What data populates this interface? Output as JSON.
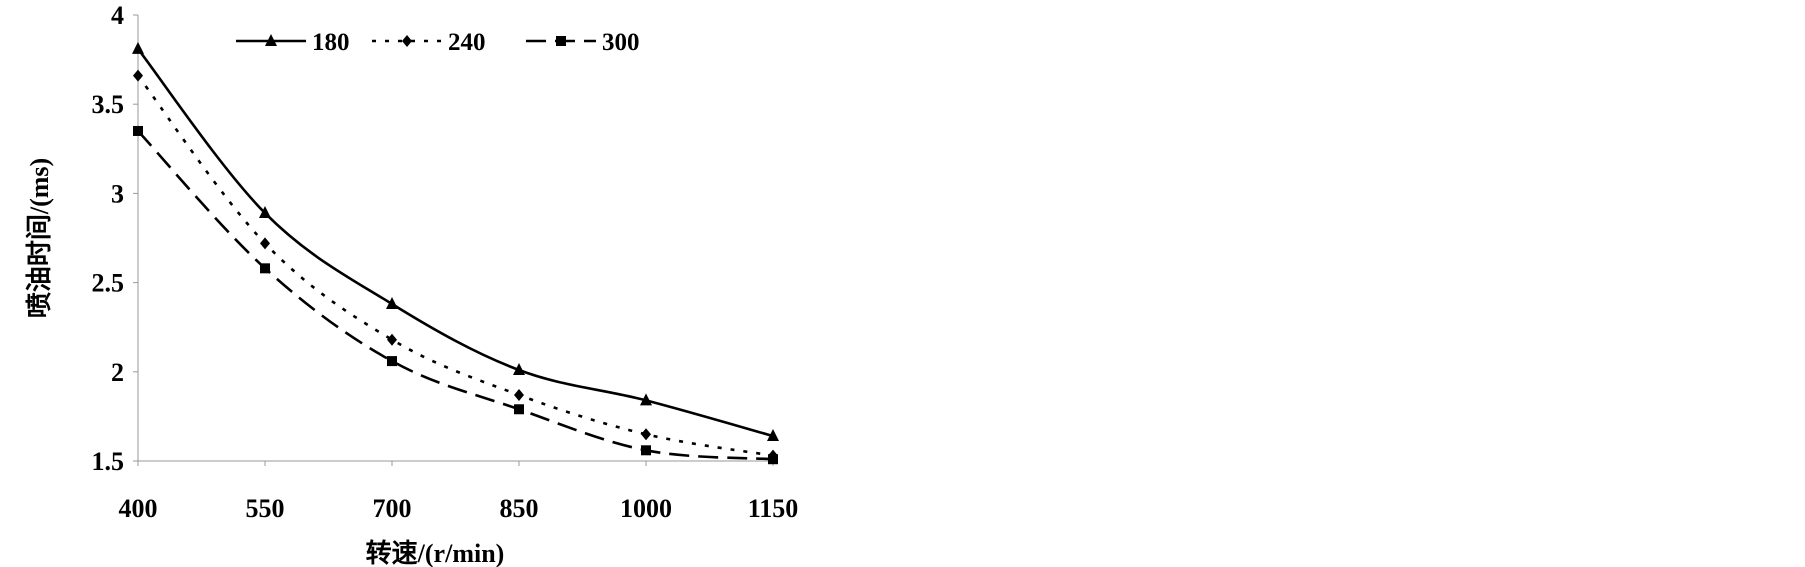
{
  "chart_data": {
    "type": "line",
    "title": "",
    "xlabel": "转速/(r/min)",
    "ylabel": "喷油时间/(ms)",
    "categories": [
      400,
      550,
      700,
      850,
      1000,
      1150
    ],
    "x_tick_labels": [
      "400",
      "550",
      "700",
      "850",
      "1000",
      "1150"
    ],
    "y_tick_labels": [
      "1.5",
      "2",
      "2.5",
      "3",
      "3.5",
      "4"
    ],
    "ylim": [
      1.5,
      4
    ],
    "grid": false,
    "smoothed": true,
    "legend_position": "top",
    "series": [
      {
        "name": "180",
        "values": [
          3.81,
          2.89,
          2.38,
          2.01,
          1.84,
          1.64
        ],
        "line_style": "solid",
        "marker": "triangle"
      },
      {
        "name": "240",
        "values": [
          3.66,
          2.72,
          2.18,
          1.87,
          1.65,
          1.53
        ],
        "line_style": "dotted",
        "marker": "diamond"
      },
      {
        "name": "300",
        "values": [
          3.35,
          2.58,
          2.06,
          1.79,
          1.56,
          1.51
        ],
        "line_style": "dashed",
        "marker": "square"
      }
    ],
    "colors": {
      "lines": "#000000"
    }
  }
}
